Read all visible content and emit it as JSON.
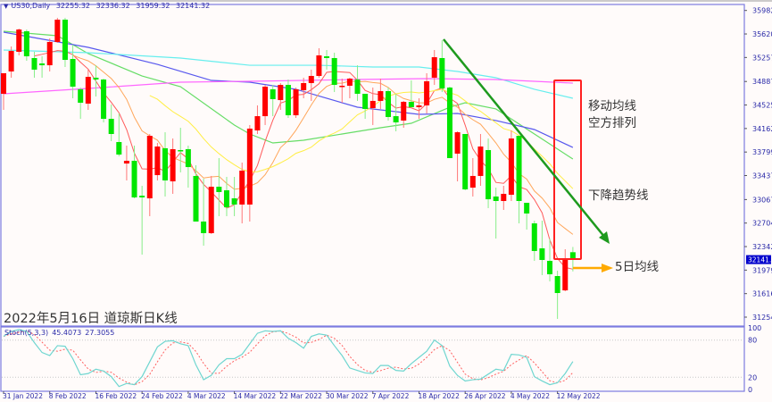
{
  "header": {
    "symbol": "US30,Daily",
    "open": "32255.32",
    "high": "32336.32",
    "low": "31959.32",
    "close": "32141.32"
  },
  "title": "2022年5月16日 道琼斯日K线",
  "annotations": {
    "ma_line1": "移动均线",
    "ma_line2": "空方排列",
    "trendline": "下降趋势线",
    "ma5": "5日均线"
  },
  "colors": {
    "up": "#ff0000",
    "down": "#00e600",
    "trendline": "#1e9a1e",
    "box": "#ff2020",
    "arrow": "#ffaa00",
    "current_price_bg": "#0000cc"
  },
  "chart_data": {
    "type": "candlestick",
    "ylim": [
      31254.3,
      35982.9
    ],
    "yticks": [
      "35982.90",
      "35620.30",
      "35257.70",
      "34887.70",
      "34525.10",
      "34162.50",
      "33799.90",
      "33437.30",
      "33067.30",
      "32704.70",
      "32342.10",
      "31979.50",
      "31616.90",
      "31254.30"
    ],
    "current_price": "32141.32",
    "xlabels": [
      {
        "i": 0,
        "label": "31 Jan 2022"
      },
      {
        "i": 6,
        "label": "8 Feb 2022"
      },
      {
        "i": 12,
        "label": "16 Feb 2022"
      },
      {
        "i": 18,
        "label": "24 Feb 2022"
      },
      {
        "i": 24,
        "label": "4 Mar 2022"
      },
      {
        "i": 30,
        "label": "14 Mar 2022"
      },
      {
        "i": 36,
        "label": "22 Mar 2022"
      },
      {
        "i": 42,
        "label": "30 Mar 2022"
      },
      {
        "i": 48,
        "label": "7 Apr 2022"
      },
      {
        "i": 54,
        "label": "18 Apr 2022"
      },
      {
        "i": 60,
        "label": "26 Apr 2022"
      },
      {
        "i": 66,
        "label": "4 May 2022"
      },
      {
        "i": 72,
        "label": "12 May 2022"
      }
    ],
    "ohlc": [
      [
        34698,
        35015,
        34450,
        35015
      ],
      [
        35042,
        35428,
        34946,
        35359
      ],
      [
        35345,
        35703,
        35290,
        35689
      ],
      [
        35662,
        35689,
        35207,
        35276
      ],
      [
        35249,
        35345,
        34946,
        35070
      ],
      [
        35166,
        35276,
        34946,
        35138
      ],
      [
        35138,
        35552,
        35042,
        35497
      ],
      [
        35497,
        35869,
        35483,
        35841
      ],
      [
        35841,
        35869,
        35111,
        35221
      ],
      [
        35235,
        35455,
        34629,
        34808
      ],
      [
        34767,
        34794,
        34312,
        34560
      ],
      [
        34546,
        35070,
        34450,
        34959
      ],
      [
        34946,
        35138,
        34656,
        34918
      ],
      [
        34918,
        34932,
        34257,
        34312
      ],
      [
        34312,
        34532,
        33968,
        34078
      ],
      [
        33954,
        34395,
        33734,
        33761
      ],
      [
        33623,
        33899,
        33362,
        33665
      ],
      [
        33665,
        33899,
        33086,
        33100
      ],
      [
        33127,
        33279,
        32218,
        33100
      ],
      [
        33086,
        34078,
        32811,
        34050
      ],
      [
        33444,
        33940,
        33362,
        33885
      ],
      [
        33858,
        34105,
        33114,
        33362
      ],
      [
        33348,
        34009,
        33155,
        33844
      ],
      [
        33830,
        34174,
        33486,
        33816
      ],
      [
        33844,
        33899,
        33251,
        33568
      ],
      [
        33431,
        33596,
        32728,
        32728
      ],
      [
        32728,
        33389,
        32356,
        32549
      ],
      [
        32549,
        33431,
        32535,
        33265
      ],
      [
        33265,
        33706,
        32811,
        33183
      ],
      [
        33210,
        33417,
        32811,
        32948
      ],
      [
        33086,
        33417,
        32811,
        32990
      ],
      [
        32990,
        33637,
        32700,
        33513
      ],
      [
        32990,
        34216,
        32728,
        34161
      ],
      [
        34133,
        34519,
        34078,
        34353
      ],
      [
        34353,
        34835,
        34216,
        34808
      ],
      [
        34767,
        34835,
        34353,
        34615
      ],
      [
        34601,
        34863,
        34450,
        34835
      ],
      [
        34835,
        34918,
        34326,
        34367
      ],
      [
        34367,
        34794,
        34326,
        34767
      ],
      [
        34753,
        34946,
        34629,
        34863
      ],
      [
        34863,
        35070,
        34588,
        34973
      ],
      [
        34973,
        35400,
        34946,
        35290
      ],
      [
        35276,
        35373,
        35070,
        35249
      ],
      [
        35249,
        35331,
        34725,
        34835
      ],
      [
        34808,
        34932,
        34560,
        34822
      ],
      [
        34822,
        34946,
        34629,
        34932
      ],
      [
        34918,
        35138,
        34588,
        34698
      ],
      [
        34698,
        34698,
        34312,
        34464
      ],
      [
        34477,
        34794,
        34216,
        34588
      ],
      [
        34588,
        34932,
        34464,
        34739
      ],
      [
        34739,
        34794,
        34285,
        34340
      ],
      [
        34353,
        34698,
        34119,
        34257
      ],
      [
        34285,
        34588,
        34174,
        34574
      ],
      [
        34574,
        34904,
        34491,
        34491
      ],
      [
        34491,
        34629,
        34312,
        34519
      ],
      [
        34519,
        35015,
        34395,
        34891
      ],
      [
        34946,
        35373,
        34835,
        35262
      ],
      [
        35249,
        35524,
        34725,
        34780
      ],
      [
        34794,
        34808,
        33706,
        33706
      ],
      [
        33775,
        34119,
        33348,
        34105
      ],
      [
        34078,
        34078,
        33210,
        33224
      ],
      [
        33251,
        33706,
        33114,
        33431
      ],
      [
        33431,
        34078,
        33279,
        33885
      ],
      [
        33830,
        34009,
        32935,
        33072
      ],
      [
        33114,
        33251,
        32466,
        33045
      ],
      [
        33045,
        33279,
        32907,
        33155
      ],
      [
        33141,
        34133,
        33045,
        34009
      ],
      [
        34050,
        34050,
        32700,
        33045
      ],
      [
        33017,
        33017,
        32604,
        32852
      ],
      [
        32700,
        32742,
        32122,
        32274
      ],
      [
        32315,
        32742,
        31902,
        32136
      ],
      [
        32122,
        32466,
        31805,
        31915
      ],
      [
        31888,
        31970,
        31227,
        31626
      ],
      [
        31667,
        32301,
        31653,
        32150
      ],
      [
        32255.32,
        32336.32,
        31959.32,
        32141.32
      ]
    ],
    "moving_averages": [
      {
        "period": 5,
        "color": "#ff5a5a"
      },
      {
        "period": 10,
        "color": "#ffa65a"
      },
      {
        "period": 20,
        "color": "#ffee44"
      }
    ],
    "trend_lines": [
      {
        "color": "#66dd66",
        "points": [
          [
            0,
            35662
          ],
          [
            7,
            35593
          ],
          [
            11,
            35318
          ],
          [
            18,
            34973
          ],
          [
            23,
            34808
          ],
          [
            30,
            34216
          ],
          [
            32,
            34078
          ],
          [
            35,
            33940
          ],
          [
            39,
            33982
          ],
          [
            44,
            34078
          ],
          [
            49,
            34174
          ],
          [
            53,
            34243
          ],
          [
            58,
            34491
          ],
          [
            60,
            34560
          ],
          [
            64,
            34464
          ],
          [
            69,
            34078
          ],
          [
            74,
            33692
          ]
        ]
      },
      {
        "color": "#5858ee",
        "points": [
          [
            0,
            35648
          ],
          [
            11,
            35414
          ],
          [
            20,
            35152
          ],
          [
            27,
            34904
          ],
          [
            32,
            34877
          ],
          [
            38,
            34767
          ],
          [
            46,
            34491
          ],
          [
            51,
            34422
          ],
          [
            54,
            34381
          ],
          [
            59,
            34395
          ],
          [
            64,
            34285
          ],
          [
            69,
            34147
          ],
          [
            74,
            33871
          ]
        ]
      },
      {
        "color": "#66eeee",
        "points": [
          [
            0,
            35373
          ],
          [
            11,
            35331
          ],
          [
            23,
            35249
          ],
          [
            32,
            35138
          ],
          [
            41,
            35138
          ],
          [
            48,
            35111
          ],
          [
            54,
            35111
          ],
          [
            59,
            35042
          ],
          [
            64,
            34946
          ],
          [
            69,
            34767
          ],
          [
            74,
            34629
          ]
        ]
      },
      {
        "color": "#ff66ff",
        "points": [
          [
            0,
            34698
          ],
          [
            11,
            34780
          ],
          [
            23,
            34877
          ],
          [
            32,
            34891
          ],
          [
            46,
            34918
          ],
          [
            55,
            34932
          ],
          [
            64,
            34918
          ],
          [
            74,
            34863
          ]
        ]
      }
    ],
    "stochastic": {
      "label": "Stoch(5,3,3)",
      "main_value": "45.4073",
      "signal_value": "27.3055",
      "levels": [
        "100",
        "80",
        "20",
        "0"
      ],
      "main": [
        86,
        94,
        97,
        94,
        76,
        60,
        55,
        71,
        70,
        50,
        24,
        26,
        33,
        30,
        21,
        5,
        10,
        8,
        21,
        45,
        69,
        78,
        79,
        74,
        71,
        40,
        16,
        23,
        40,
        50,
        50,
        57,
        74,
        91,
        95,
        94,
        95,
        83,
        76,
        67,
        86,
        90,
        88,
        71,
        55,
        35,
        31,
        27,
        26,
        39,
        39,
        31,
        30,
        42,
        52,
        62,
        80,
        71,
        38,
        23,
        14,
        16,
        17,
        25,
        33,
        31,
        57,
        56,
        52,
        21,
        14,
        8,
        11,
        26,
        45.4073
      ],
      "main_color": "#6fd6d0",
      "signal_color": "#ff6060"
    }
  }
}
